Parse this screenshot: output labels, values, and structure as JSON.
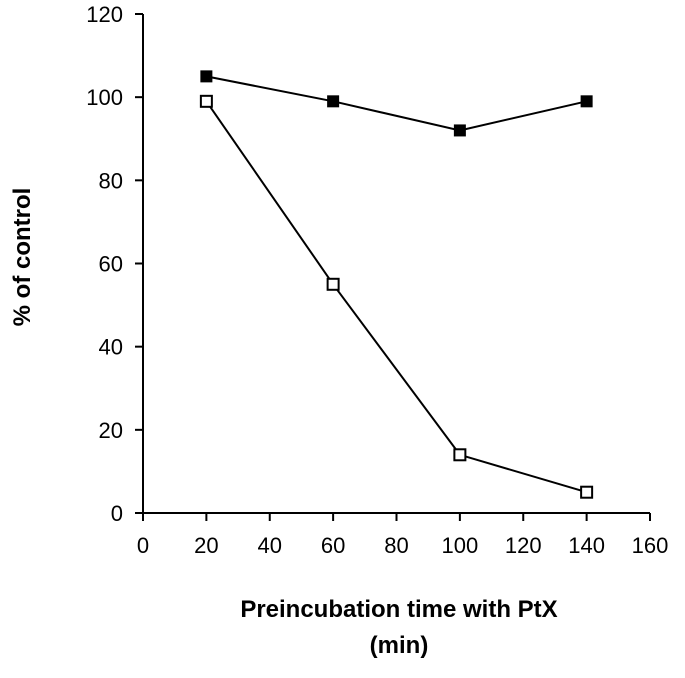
{
  "chart_data": {
    "type": "line",
    "title": "",
    "xlabel_lines": [
      "Preincubation time with PtX",
      "(min)"
    ],
    "ylabel": "% of control",
    "xlim": [
      0,
      160
    ],
    "ylim": [
      0,
      120
    ],
    "xticks": [
      0,
      20,
      40,
      60,
      80,
      100,
      120,
      140,
      160
    ],
    "yticks": [
      0,
      20,
      40,
      60,
      80,
      100,
      120
    ],
    "grid": false,
    "legend": "none",
    "x": [
      20,
      60,
      100,
      140
    ],
    "series": [
      {
        "name": "filled squares",
        "marker": "filled-square",
        "color": "#000000",
        "values": [
          105,
          99,
          92,
          99
        ]
      },
      {
        "name": "open squares",
        "marker": "open-square",
        "color": "#000000",
        "values": [
          99,
          55,
          14,
          5
        ]
      }
    ]
  }
}
